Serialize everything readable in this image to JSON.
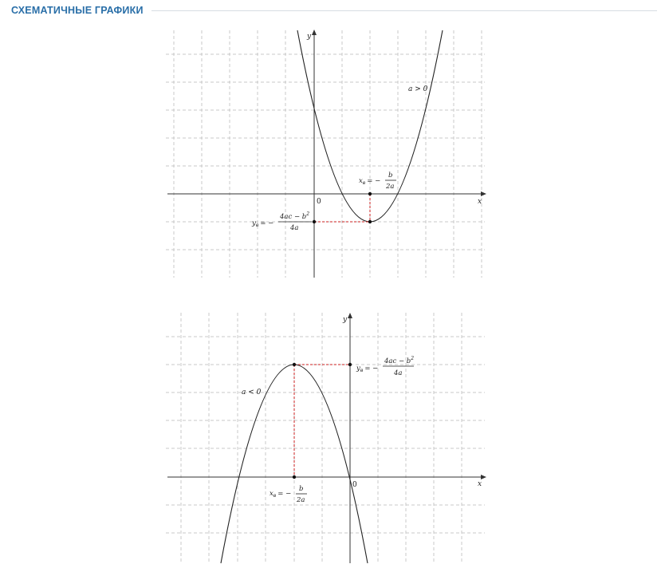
{
  "section": {
    "title": "СХЕМАТИЧНЫЕ ГРАФИКИ"
  },
  "graphs": [
    {
      "condition": "a > 0",
      "axis_x": "x",
      "axis_y": "y",
      "origin": "0",
      "vertex_x": {
        "lhs": "x",
        "lhs_sub": "в",
        "eq": "= −",
        "num": "b",
        "den": "2a"
      },
      "vertex_y": {
        "lhs": "y",
        "lhs_sub": "в",
        "eq": "= −",
        "num": "4ac − b",
        "num_sup": "2",
        "den": "4a"
      }
    },
    {
      "condition": "a < 0",
      "axis_x": "x",
      "axis_y": "y",
      "origin": "0",
      "vertex_x": {
        "lhs": "x",
        "lhs_sub": "в",
        "eq": "= −",
        "num": "b",
        "den": "2a"
      },
      "vertex_y": {
        "lhs": "y",
        "lhs_sub": "в",
        "eq": "= −",
        "num": "4ac − b",
        "num_sup": "2",
        "den": "4a"
      }
    }
  ]
}
